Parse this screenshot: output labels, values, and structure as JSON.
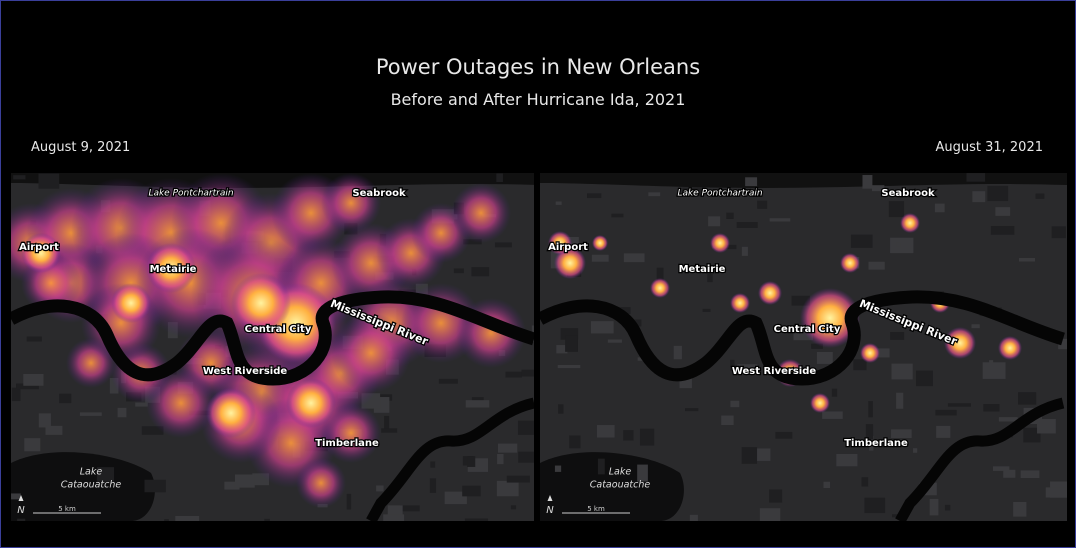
{
  "title": "Power Outages in New Orleans",
  "subtitle": "Before and After Hurricane Ida, 2021",
  "panels": [
    {
      "date": "August 9, 2021",
      "places": [
        "Lake Pontchartrain",
        "Seabrook",
        "Airport",
        "Metairie",
        "Central City",
        "Mississippi River",
        "West Riverside",
        "Timberlane"
      ],
      "lake": [
        "Lake",
        "Cataouatche"
      ],
      "north": "N",
      "scale": "5 km"
    },
    {
      "date": "August 31, 2021",
      "places": [
        "Lake Pontchartrain",
        "Seabrook",
        "Airport",
        "Metairie",
        "Central City",
        "Mississippi River",
        "West Riverside",
        "Timberlane"
      ],
      "lake": [
        "Lake",
        "Cataouatche"
      ],
      "north": "N",
      "scale": "5 km"
    }
  ]
}
